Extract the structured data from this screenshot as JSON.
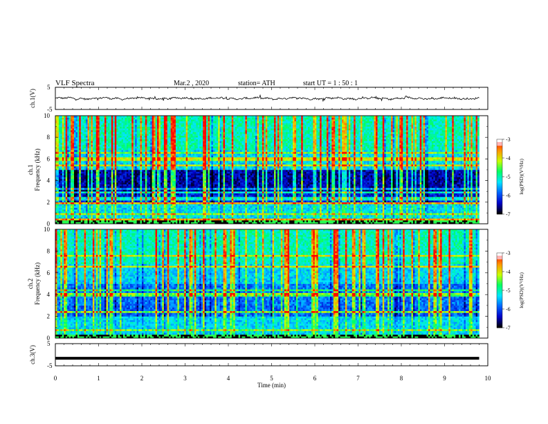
{
  "header": {
    "title": "VLF  Spectra",
    "date": "Mar.2  , 2020",
    "station": "station= ATH",
    "start": "start  UT  =   1 : 50 : 1"
  },
  "chart_data": [
    {
      "type": "line",
      "name": "ch1-waveform",
      "ylabel": "ch.1(V)",
      "yticks": [
        "5",
        "-5"
      ],
      "ylim": [
        -5,
        5
      ],
      "xlim": [
        0,
        9.8
      ],
      "series": [
        {
          "values_description_free": true,
          "level": 0.0,
          "amplitude": 0.7
        }
      ]
    },
    {
      "type": "heatmap",
      "name": "ch1-spectrogram",
      "ylabel_top": "ch.1",
      "ylabel": "Frequency  (kHz)",
      "ylim": [
        0,
        10
      ],
      "yticks": [
        "0",
        "2",
        "4",
        "6",
        "8",
        "10"
      ],
      "xlim": [
        0,
        9.8
      ],
      "colorbar": {
        "label": "log(PSD)(V²/Hz)",
        "ticks": [
          "-3",
          "-4",
          "-5",
          "-6",
          "-7"
        ],
        "range": [
          -7,
          -3
        ]
      }
    },
    {
      "type": "heatmap",
      "name": "ch2-spectrogram",
      "ylabel_top": "ch.2",
      "ylabel": "Frequency  (kHz)",
      "ylim": [
        0,
        10
      ],
      "yticks": [
        "0",
        "2",
        "4",
        "6",
        "8",
        "10"
      ],
      "xlim": [
        0,
        9.8
      ],
      "colorbar": {
        "label": "log(PSD)(V²/Hz)",
        "ticks": [
          "-3",
          "-4",
          "-5",
          "-6",
          "-7"
        ],
        "range": [
          -7,
          -3
        ]
      }
    },
    {
      "type": "line",
      "name": "ch3-waveform",
      "ylabel": "ch.3(V)",
      "yticks": [
        "5",
        "-5"
      ],
      "ylim": [
        -5,
        5
      ],
      "xlim": [
        0,
        9.8
      ],
      "series": [
        {
          "level": -1.6
        }
      ]
    }
  ],
  "xaxis": {
    "label": "Time  (min)",
    "ticks": [
      "0",
      "1",
      "2",
      "3",
      "4",
      "5",
      "6",
      "7",
      "8",
      "9",
      "10"
    ],
    "range": [
      0,
      10
    ]
  },
  "colors": {
    "waveform": "#000000",
    "colormap": [
      "#000000",
      "#0000c8",
      "#0064ff",
      "#00e6ff",
      "#00ff64",
      "#c8ff00",
      "#ff9600",
      "#ff0000",
      "#ffffff"
    ]
  }
}
